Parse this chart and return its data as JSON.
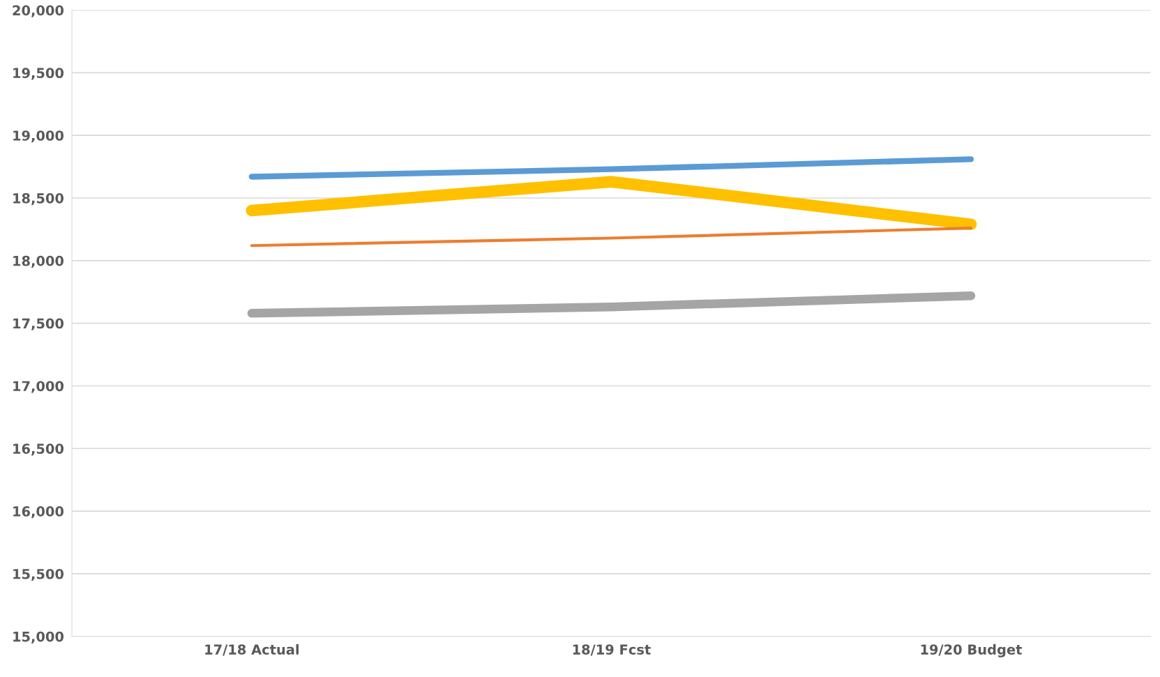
{
  "chart_data": {
    "type": "line",
    "categories": [
      "17/18 Actual",
      "18/19 Fcst",
      "19/20 Budget"
    ],
    "series": [
      {
        "color": "#5b9bd5",
        "values": [
          18670,
          18730,
          18810
        ]
      },
      {
        "color": "#ffc000",
        "values": [
          18400,
          18630,
          18290
        ]
      },
      {
        "color": "#ed7d31",
        "values": [
          18120,
          18180,
          18260
        ]
      },
      {
        "color": "#a5a5a5",
        "values": [
          17580,
          17630,
          17720
        ]
      }
    ],
    "ylim": [
      15000,
      20000
    ],
    "yticks": [
      {
        "value": 15000,
        "label": "15,000"
      },
      {
        "value": 15500,
        "label": "15,500"
      },
      {
        "value": 16000,
        "label": "16,000"
      },
      {
        "value": 16500,
        "label": "16,500"
      },
      {
        "value": 17000,
        "label": "17,000"
      },
      {
        "value": 17500,
        "label": "17,500"
      },
      {
        "value": 18000,
        "label": "18,000"
      },
      {
        "value": 18500,
        "label": "18,500"
      },
      {
        "value": 19000,
        "label": "19,000"
      },
      {
        "value": 19500,
        "label": "19,500"
      },
      {
        "value": 20000,
        "label": "20,000"
      }
    ],
    "grid": "y",
    "marker": "none",
    "line_style": "solid"
  }
}
